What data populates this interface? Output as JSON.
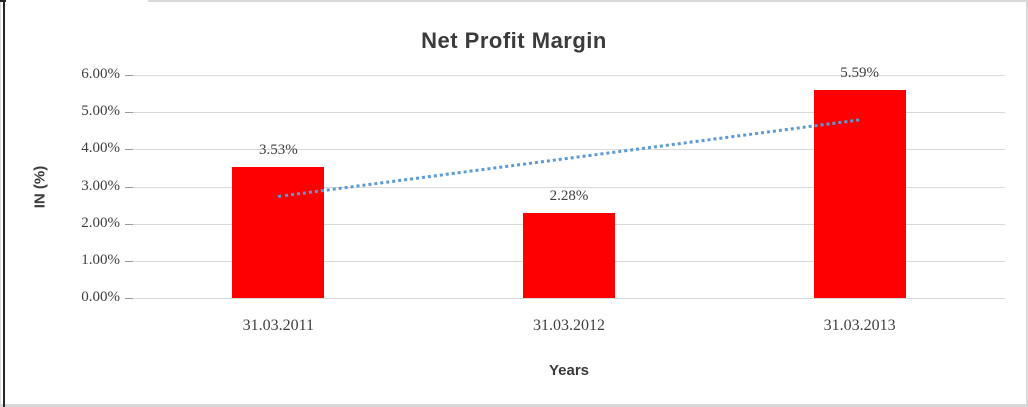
{
  "chart_data": {
    "type": "bar",
    "title": "Net Profit Margin",
    "xlabel": "Years",
    "ylabel": "IN (%)",
    "categories": [
      "31.03.2011",
      "31.03.2012",
      "31.03.2013"
    ],
    "values": [
      3.53,
      2.28,
      5.59
    ],
    "data_labels": [
      "3.53%",
      "2.28%",
      "5.59%"
    ],
    "y_ticks": [
      {
        "value": 6,
        "label": "6.00%"
      },
      {
        "value": 5,
        "label": "5.00%"
      },
      {
        "value": 4,
        "label": "4.00%"
      },
      {
        "value": 3,
        "label": "3.00%"
      },
      {
        "value": 2,
        "label": "2.00%"
      },
      {
        "value": 1,
        "label": "1.00%"
      },
      {
        "value": 0,
        "label": "0.00%"
      }
    ],
    "ylim": [
      0,
      6
    ],
    "grid": true,
    "legend": "none",
    "bar_color": "#FF0000",
    "trendline": {
      "type": "linear",
      "style": "dotted",
      "color": "#5B9BD5",
      "start_value": 2.77,
      "end_value": 4.83
    },
    "colors": {
      "gridline": "#d9d9d9",
      "text": "#3f3f3f",
      "frame": "#d9d9d9",
      "left_border": "#262626"
    }
  }
}
